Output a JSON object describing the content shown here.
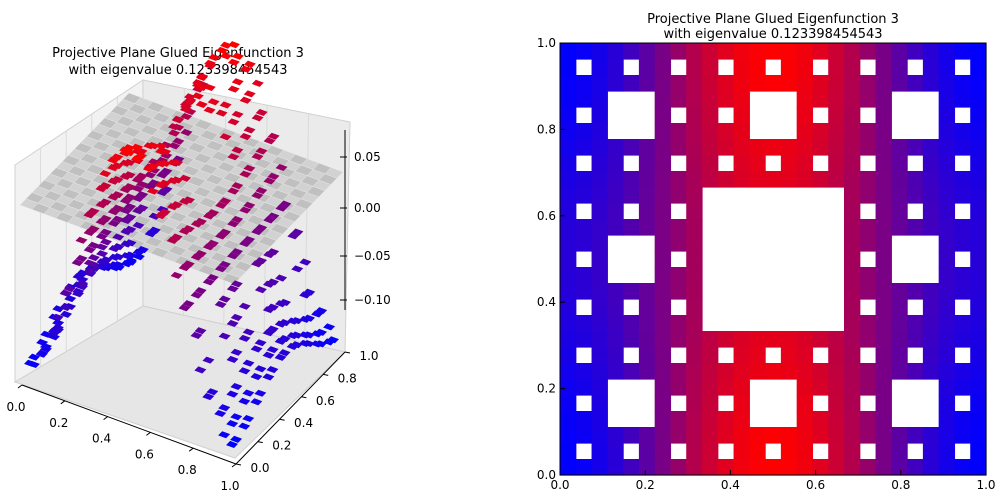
{
  "chart_data": [
    {
      "type": "surface3d",
      "title_line1": "Projective Plane Glued Eigenfunction 3",
      "title_line2": "with eigenvalue 0.123398454543",
      "x_ticks": [
        "0.0",
        "0.2",
        "0.4",
        "0.6",
        "0.8",
        "1.0"
      ],
      "y_ticks": [
        "0.0",
        "0.2",
        "0.4",
        "0.6",
        "0.8",
        "1.0"
      ],
      "z_ticks": [
        "0.05",
        "0.00",
        "−0.05",
        "−0.10"
      ],
      "xlim": [
        0,
        1
      ],
      "ylim": [
        0,
        1
      ],
      "zlim": [
        -0.12,
        0.08
      ],
      "colors": {
        "high": "#ff0000",
        "low": "#0000ff",
        "zero_plane": "#c8c8c8"
      },
      "description_of_surface": "Sierpinski-carpet sampled eigenfunction: max near x=0.5 (~0.06), min near x=0 and x=1 (~-0.11)"
    },
    {
      "type": "heatmap",
      "title_line1": "Projective Plane Glued Eigenfunction 3",
      "title_line2": "with eigenvalue 0.123398454543",
      "x_ticks": [
        "0.0",
        "0.2",
        "0.4",
        "0.6",
        "0.8",
        "1.0"
      ],
      "y_ticks": [
        "0.0",
        "0.2",
        "0.4",
        "0.6",
        "0.8",
        "1.0"
      ],
      "xlim": [
        0,
        1
      ],
      "ylim": [
        0,
        1
      ],
      "colors": {
        "high": "#ff0000",
        "low": "#0000ff"
      },
      "domain": "Sierpinski carpet, level 3"
    }
  ]
}
